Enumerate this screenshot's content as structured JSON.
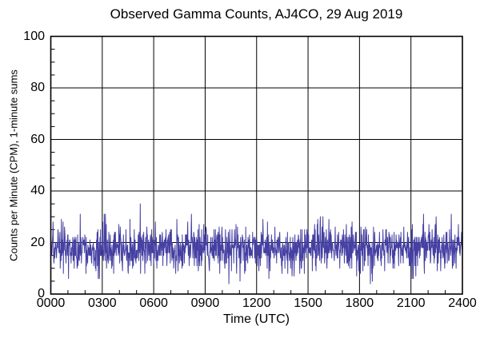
{
  "chart_data": {
    "type": "line",
    "title": "Observed Gamma Counts, AJ4CO, 29 Aug 2019",
    "xlabel": "Time (UTC)",
    "ylabel": "Counts per Minute (CPM), 1-minute sums",
    "xlim_minutes": [
      0,
      1440
    ],
    "x_tick_labels": [
      "0000",
      "0300",
      "0600",
      "0900",
      "1200",
      "1500",
      "1800",
      "2100",
      "2400"
    ],
    "x_tick_minutes": [
      0,
      180,
      360,
      540,
      720,
      900,
      1080,
      1260,
      1440
    ],
    "x_minor_step_minutes": 60,
    "ylim": [
      0,
      100
    ],
    "y_tick_labels": [
      "0",
      "20",
      "40",
      "60",
      "80",
      "100"
    ],
    "y_tick_values": [
      0,
      20,
      40,
      60,
      80,
      100
    ],
    "y_minor_step": 5,
    "grid": true,
    "legend": "none",
    "frame_color": "#000000",
    "line_color": "#4540a2",
    "series": [
      {
        "name": "gamma_counts_cpm",
        "n_points": 1440,
        "sample_interval_minutes": 1,
        "mean_cpm": 17.6,
        "std_cpm": 4.3,
        "observed_min_cpm": 4,
        "typical_max_cpm": 31,
        "observed_max_cpm": 35,
        "max_at_utc": "0513",
        "seed": 20190829
      }
    ]
  }
}
